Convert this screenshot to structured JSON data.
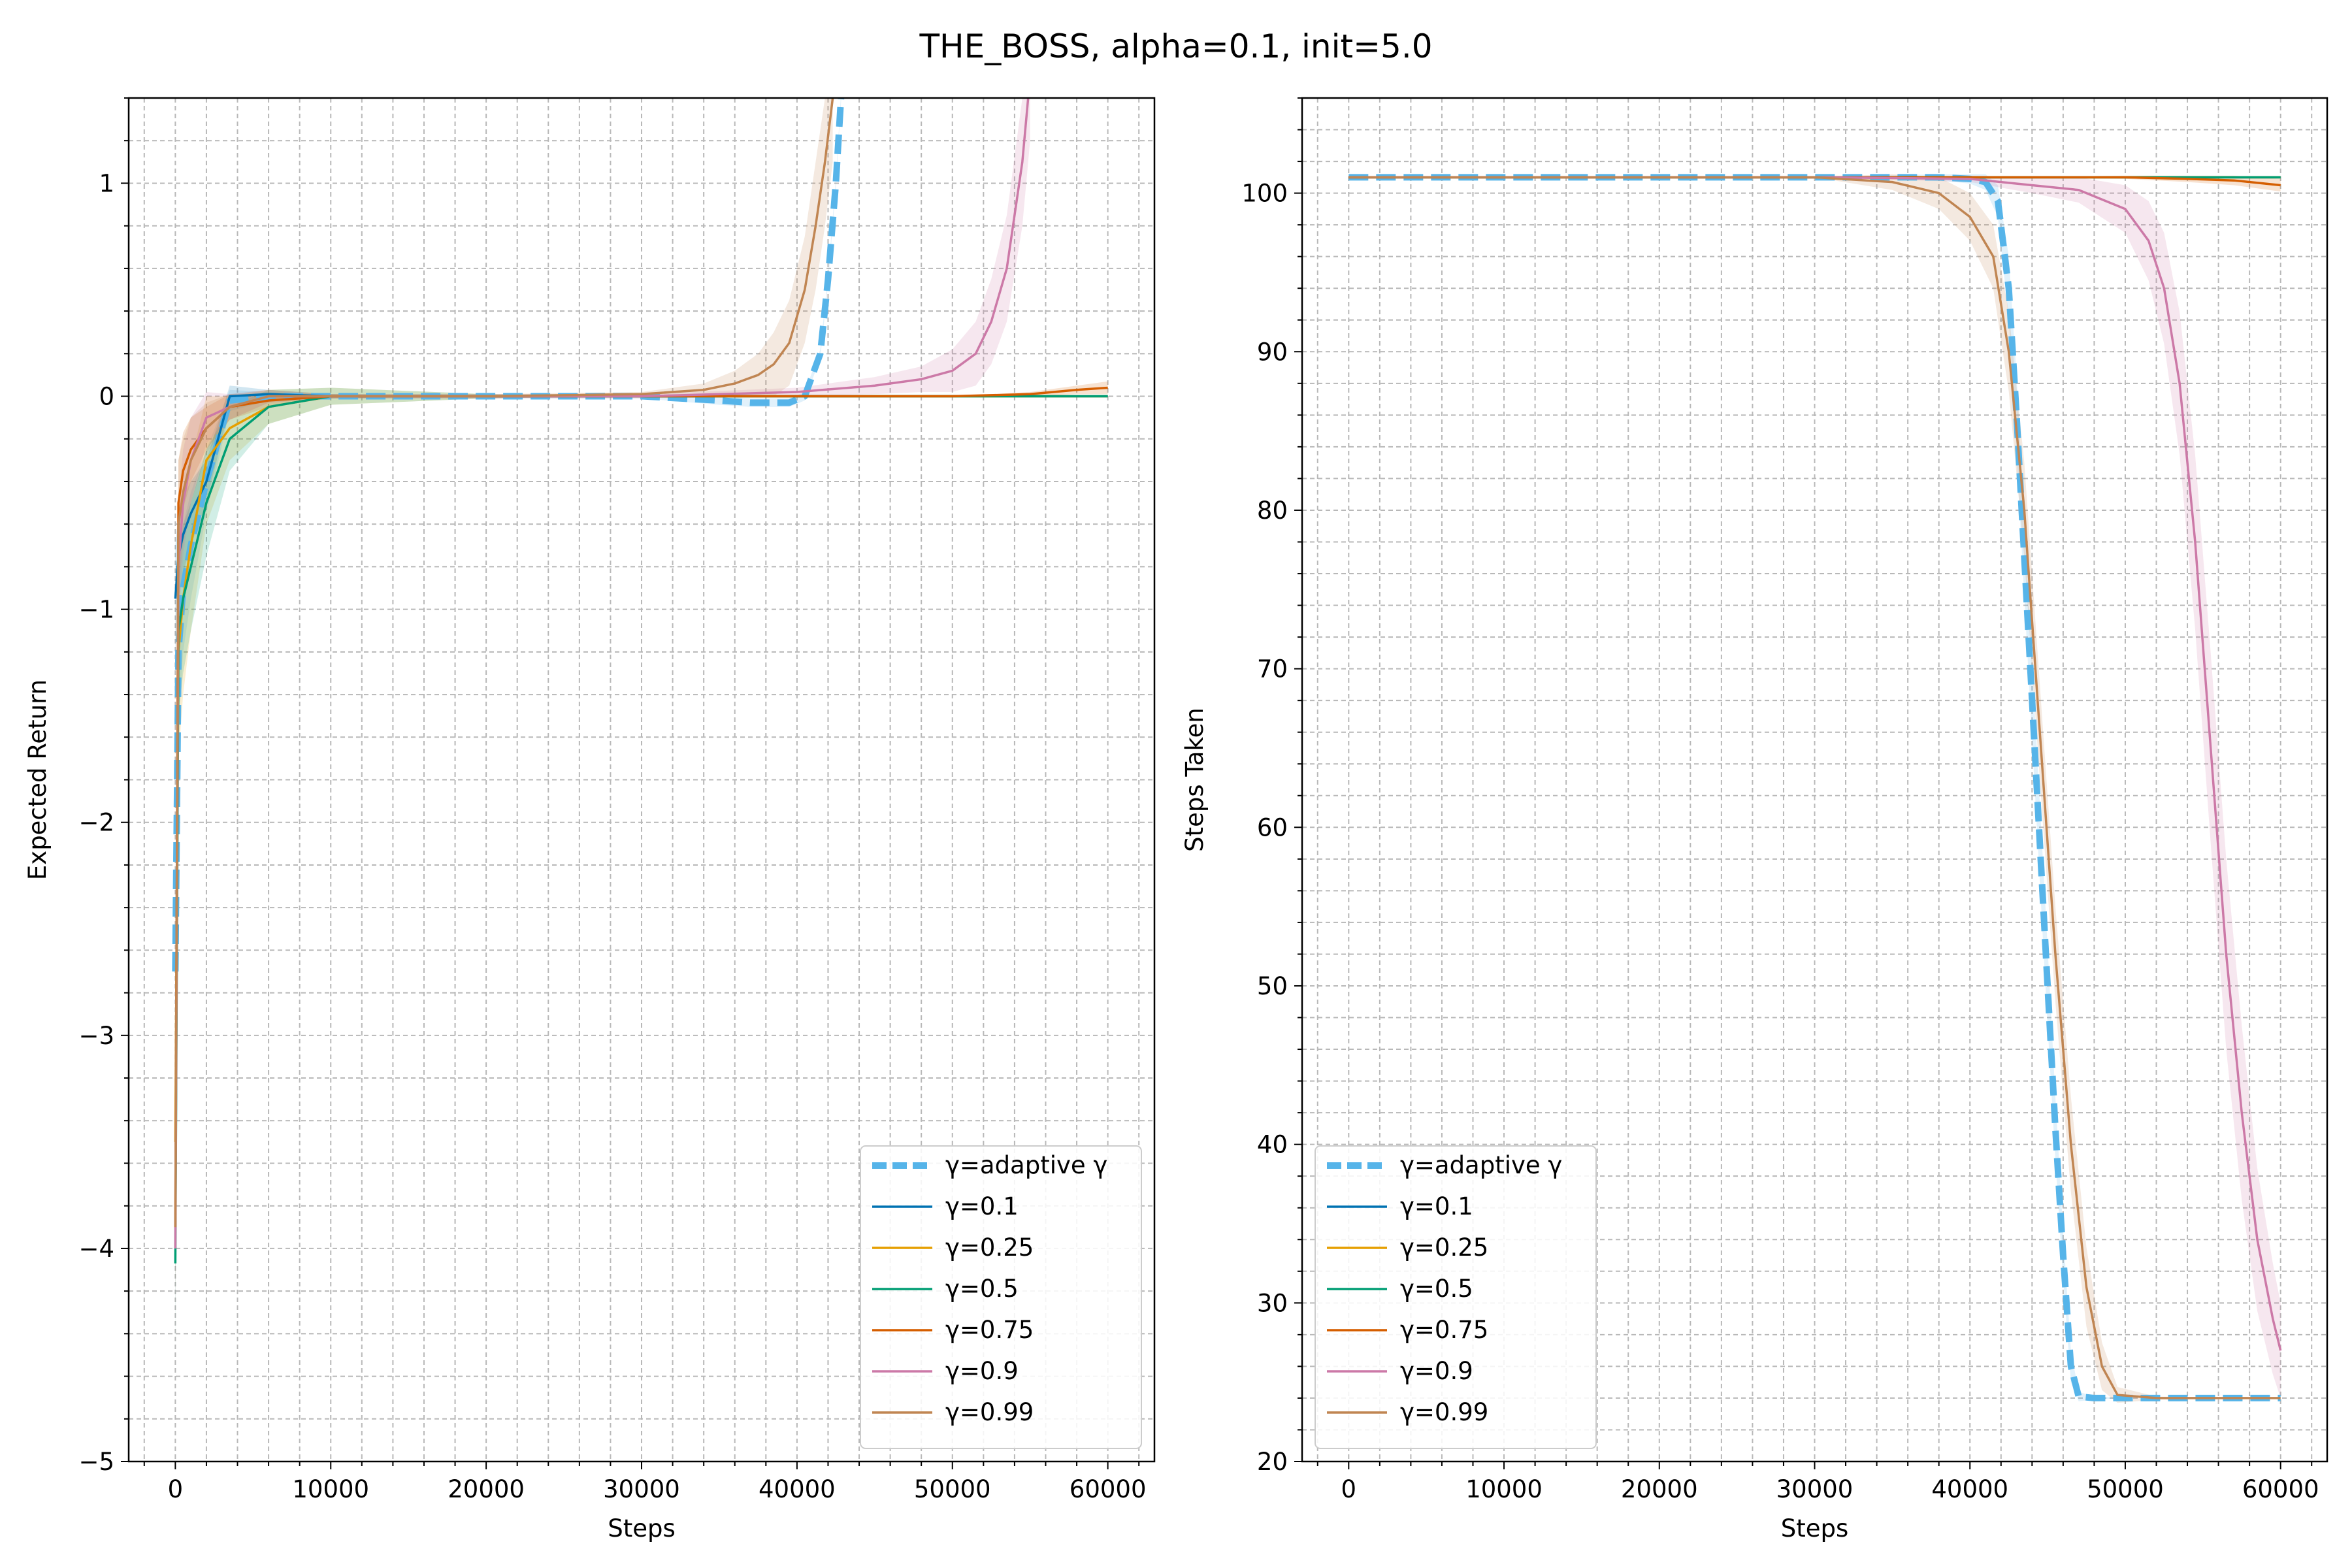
{
  "figure": {
    "title": "THE_BOSS, alpha=0.1, init=5.0"
  },
  "colors": {
    "adaptive": "#56b4e9",
    "g01": "#0072b2",
    "g025": "#e69f00",
    "g05": "#009e73",
    "g075": "#d55e00",
    "g09": "#cc79a7",
    "g099": "#c08552"
  },
  "chart_data": [
    {
      "type": "line",
      "title": "",
      "xlabel": "Steps",
      "ylabel": "Expected Return",
      "xlim": [
        -3000,
        63000
      ],
      "ylim": [
        -5,
        1.4
      ],
      "xticks": [
        0,
        10000,
        20000,
        30000,
        40000,
        50000,
        60000
      ],
      "yticks": [
        -5,
        -4,
        -3,
        -2,
        -1,
        0,
        1
      ],
      "ytick_labels": [
        "−5",
        "−4",
        "−3",
        "−2",
        "−1",
        "0",
        "1"
      ],
      "grid": true,
      "legend_position": "lower-right",
      "series": [
        {
          "name": "γ=adaptive γ",
          "color_key": "adaptive",
          "dashed": true,
          "x": [
            0,
            200,
            500,
            1000,
            2000,
            3500,
            6000,
            10000,
            20000,
            30000,
            35000,
            37000,
            39500,
            40500,
            41500,
            42000,
            42500,
            43000
          ],
          "y": [
            -2.7,
            -1.2,
            -0.9,
            -0.7,
            -0.4,
            -0.02,
            0.0,
            0.0,
            0.0,
            0.0,
            -0.02,
            -0.03,
            -0.03,
            0.0,
            0.2,
            0.55,
            1.0,
            1.6
          ],
          "band": [
            0.35,
            0.35,
            0.3,
            0.25,
            0.15,
            0.05,
            0.02,
            0.01,
            0.01,
            0.01,
            0.02,
            0.02,
            0.02,
            0.02,
            0.02,
            0.02,
            0.02,
            0.02
          ]
        },
        {
          "name": "γ=0.1",
          "color_key": "g01",
          "dashed": false,
          "x": [
            0,
            200,
            500,
            1000,
            2000,
            3500,
            6000,
            10000,
            20000,
            30000,
            40000,
            50000,
            60000
          ],
          "y": [
            -0.95,
            -0.75,
            -0.65,
            -0.55,
            -0.4,
            0.0,
            0.01,
            0.0,
            0.0,
            0.0,
            0.0,
            0.0,
            0.0
          ],
          "band": [
            0.25,
            0.2,
            0.18,
            0.15,
            0.1,
            0.05,
            0.02,
            0.01,
            0.0,
            0.0,
            0.0,
            0.0,
            0.0
          ]
        },
        {
          "name": "γ=0.25",
          "color_key": "g025",
          "dashed": false,
          "x": [
            0,
            200,
            500,
            1000,
            2000,
            3500,
            6000,
            10000,
            20000,
            30000,
            40000,
            50000,
            60000
          ],
          "y": [
            -3.5,
            -1.2,
            -0.95,
            -0.7,
            -0.3,
            -0.15,
            -0.05,
            0.0,
            0.0,
            0.0,
            0.0,
            0.0,
            0.0
          ],
          "band": [
            0.6,
            0.5,
            0.45,
            0.4,
            0.3,
            0.15,
            0.08,
            0.04,
            0.01,
            0.0,
            0.0,
            0.0,
            0.0
          ]
        },
        {
          "name": "γ=0.5",
          "color_key": "g05",
          "dashed": false,
          "x": [
            0,
            200,
            500,
            1000,
            2000,
            3500,
            6000,
            10000,
            20000,
            30000,
            40000,
            50000,
            60000
          ],
          "y": [
            -4.07,
            -1.1,
            -0.95,
            -0.8,
            -0.5,
            -0.2,
            -0.05,
            0.0,
            0.0,
            0.0,
            0.0,
            0.0,
            0.0
          ],
          "band": [
            0.4,
            0.4,
            0.35,
            0.3,
            0.25,
            0.15,
            0.08,
            0.04,
            0.01,
            0.0,
            0.0,
            0.0,
            0.0
          ]
        },
        {
          "name": "γ=0.75",
          "color_key": "g075",
          "dashed": false,
          "x": [
            0,
            200,
            500,
            1000,
            2000,
            3500,
            6000,
            10000,
            20000,
            30000,
            40000,
            50000,
            55000,
            58000,
            60000
          ],
          "y": [
            -3.9,
            -0.5,
            -0.35,
            -0.25,
            -0.15,
            -0.05,
            -0.02,
            0.0,
            0.0,
            0.0,
            0.0,
            0.0,
            0.01,
            0.03,
            0.04
          ],
          "band": [
            0.3,
            0.2,
            0.18,
            0.15,
            0.1,
            0.06,
            0.03,
            0.01,
            0.0,
            0.0,
            0.0,
            0.0,
            0.01,
            0.02,
            0.03
          ]
        },
        {
          "name": "γ=0.9",
          "color_key": "g09",
          "dashed": false,
          "x": [
            0,
            200,
            500,
            1000,
            2000,
            3500,
            6000,
            10000,
            20000,
            30000,
            40000,
            45000,
            48000,
            50000,
            51500,
            52500,
            53500,
            54500,
            55000
          ],
          "y": [
            -4.0,
            -0.8,
            -0.5,
            -0.3,
            -0.1,
            -0.05,
            0.0,
            0.0,
            0.0,
            0.0,
            0.02,
            0.05,
            0.08,
            0.12,
            0.2,
            0.35,
            0.6,
            1.1,
            1.5
          ],
          "band": [
            0.4,
            0.3,
            0.25,
            0.2,
            0.12,
            0.06,
            0.03,
            0.01,
            0.01,
            0.01,
            0.02,
            0.04,
            0.06,
            0.1,
            0.15,
            0.2,
            0.25,
            0.3,
            0.3
          ]
        },
        {
          "name": "γ=0.99",
          "color_key": "g099",
          "dashed": false,
          "x": [
            0,
            200,
            500,
            1000,
            2000,
            3500,
            6000,
            10000,
            20000,
            30000,
            34000,
            36000,
            37500,
            38500,
            39500,
            40500,
            41200,
            41800,
            42300
          ],
          "y": [
            -3.9,
            -0.6,
            -0.45,
            -0.3,
            -0.15,
            -0.05,
            0.0,
            0.0,
            0.0,
            0.01,
            0.03,
            0.06,
            0.1,
            0.15,
            0.25,
            0.5,
            0.8,
            1.1,
            1.4
          ],
          "band": [
            0.4,
            0.3,
            0.25,
            0.2,
            0.12,
            0.06,
            0.03,
            0.01,
            0.01,
            0.01,
            0.03,
            0.06,
            0.1,
            0.15,
            0.2,
            0.25,
            0.3,
            0.3,
            0.3
          ]
        }
      ]
    },
    {
      "type": "line",
      "title": "",
      "xlabel": "Steps",
      "ylabel": "Steps Taken",
      "xlim": [
        -3000,
        63000
      ],
      "ylim": [
        20,
        106
      ],
      "xticks": [
        0,
        10000,
        20000,
        30000,
        40000,
        50000,
        60000
      ],
      "yticks": [
        20,
        30,
        40,
        50,
        60,
        70,
        80,
        90,
        100
      ],
      "ytick_labels": [
        "20",
        "30",
        "40",
        "50",
        "60",
        "70",
        "80",
        "90",
        "100"
      ],
      "grid": true,
      "legend_position": "lower-left",
      "series": [
        {
          "name": "γ=adaptive γ",
          "color_key": "adaptive",
          "dashed": true,
          "x": [
            0,
            10000,
            20000,
            30000,
            38000,
            40000,
            41000,
            41800,
            42500,
            43000,
            43500,
            44000,
            44500,
            45000,
            45500,
            46000,
            46500,
            47000,
            48000,
            50000,
            55000,
            60000
          ],
          "y": [
            101,
            101,
            101,
            101,
            101,
            100.9,
            100.7,
            99.5,
            94,
            86,
            77,
            68,
            59,
            50,
            41,
            33,
            26,
            24.1,
            24,
            24,
            24,
            24
          ],
          "band": [
            0,
            0,
            0,
            0,
            0.2,
            0.3,
            0.5,
            1.0,
            2.0,
            2.5,
            2.5,
            2.5,
            2.5,
            2.5,
            2.0,
            1.5,
            1.0,
            0.3,
            0.1,
            0,
            0,
            0
          ]
        },
        {
          "name": "γ=0.1",
          "color_key": "g01",
          "dashed": false,
          "x": [
            0,
            10000,
            20000,
            30000,
            40000,
            50000,
            60000
          ],
          "y": [
            101,
            101,
            101,
            101,
            101,
            101,
            101
          ],
          "band": [
            0,
            0,
            0,
            0,
            0,
            0,
            0
          ]
        },
        {
          "name": "γ=0.25",
          "color_key": "g025",
          "dashed": false,
          "x": [
            0,
            10000,
            20000,
            30000,
            40000,
            50000,
            60000
          ],
          "y": [
            101,
            101,
            101,
            101,
            101,
            101,
            101
          ],
          "band": [
            0,
            0,
            0,
            0,
            0,
            0,
            0
          ]
        },
        {
          "name": "γ=0.5",
          "color_key": "g05",
          "dashed": false,
          "x": [
            0,
            10000,
            20000,
            30000,
            40000,
            50000,
            60000
          ],
          "y": [
            101,
            101,
            101,
            101,
            101,
            101,
            101
          ],
          "band": [
            0,
            0,
            0,
            0,
            0,
            0,
            0
          ]
        },
        {
          "name": "γ=0.75",
          "color_key": "g075",
          "dashed": false,
          "x": [
            0,
            10000,
            20000,
            30000,
            40000,
            50000,
            54000,
            57000,
            60000
          ],
          "y": [
            101,
            101,
            101,
            101,
            101,
            101,
            100.9,
            100.8,
            100.5
          ],
          "band": [
            0,
            0,
            0,
            0,
            0,
            0.1,
            0.2,
            0.3,
            0.4
          ]
        },
        {
          "name": "γ=0.9",
          "color_key": "g09",
          "dashed": false,
          "x": [
            0,
            10000,
            20000,
            30000,
            40000,
            44000,
            47000,
            50000,
            51500,
            52500,
            53500,
            54500,
            55500,
            56500,
            57500,
            58500,
            59500,
            60000
          ],
          "y": [
            101,
            101,
            101,
            101,
            100.9,
            100.5,
            100.2,
            99.0,
            97,
            94,
            88,
            78,
            65,
            52,
            42,
            34,
            29,
            27
          ],
          "band": [
            0,
            0,
            0,
            0,
            0.2,
            0.5,
            0.8,
            1.5,
            2.5,
            3.5,
            4.5,
            5.5,
            6.0,
            6.0,
            5.5,
            4.5,
            3.5,
            3.0
          ]
        },
        {
          "name": "γ=0.99",
          "color_key": "g099",
          "dashed": false,
          "x": [
            0,
            10000,
            20000,
            30000,
            35000,
            38000,
            40000,
            41500,
            42500,
            43500,
            44500,
            45500,
            46500,
            47500,
            48500,
            49500,
            52000,
            60000
          ],
          "y": [
            101,
            101,
            101,
            101,
            100.7,
            100,
            98.5,
            96,
            90,
            80,
            66,
            52,
            40,
            31,
            26,
            24.2,
            24,
            24
          ],
          "band": [
            0,
            0,
            0,
            0,
            0.5,
            1.0,
            1.5,
            2.0,
            2.5,
            3.0,
            3.0,
            3.0,
            3.0,
            2.5,
            1.5,
            0.5,
            0.1,
            0
          ]
        }
      ]
    }
  ]
}
